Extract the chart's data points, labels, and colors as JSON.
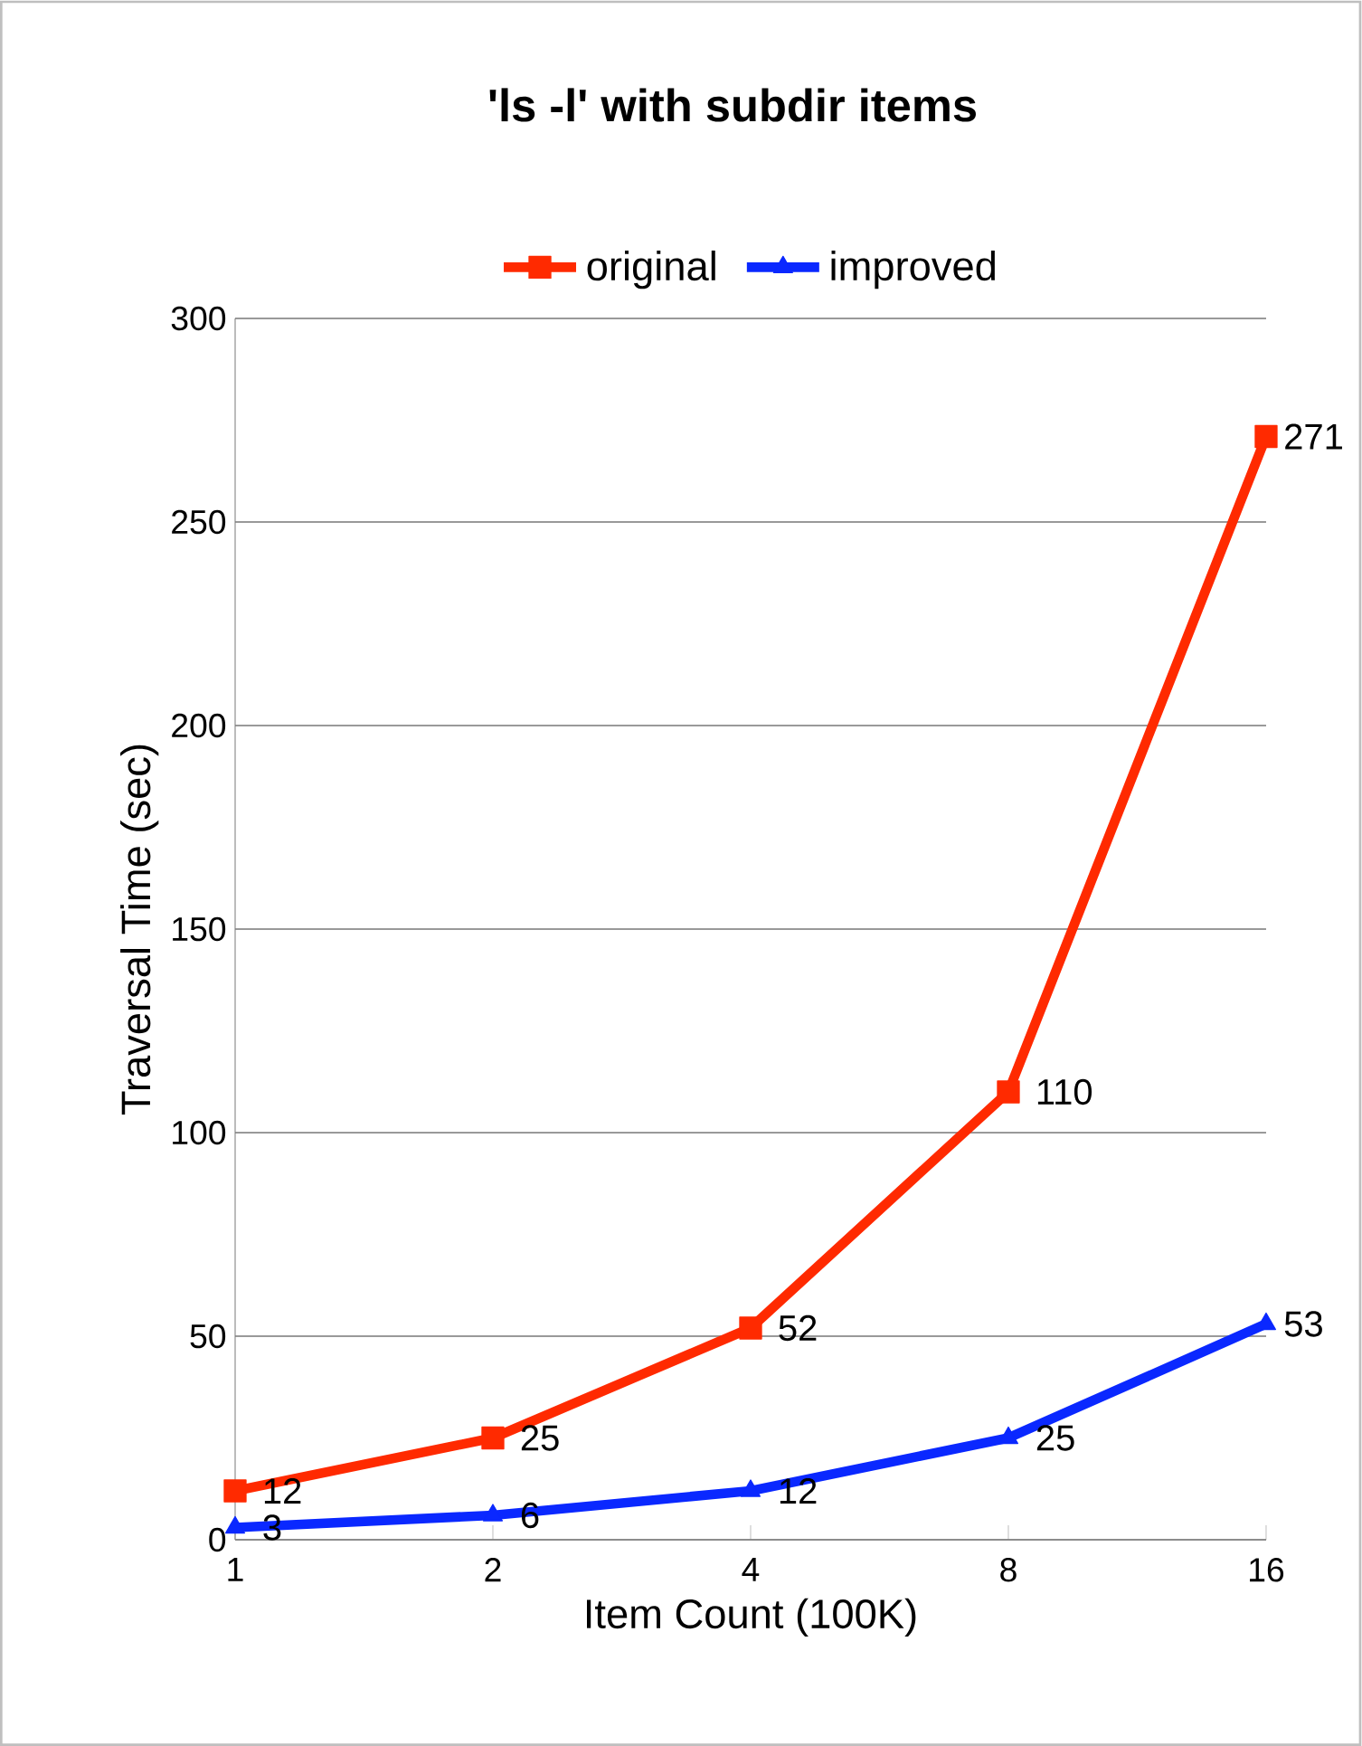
{
  "chart_data": {
    "type": "line",
    "title": "'ls -l' with subdir items",
    "xlabel": "Item Count (100K)",
    "ylabel": "Traversal Time (sec)",
    "categories": [
      "1",
      "2",
      "4",
      "8",
      "16"
    ],
    "series": [
      {
        "name": "original",
        "color": "#ff2a00",
        "marker": "square",
        "values": [
          12,
          25,
          52,
          110,
          271
        ]
      },
      {
        "name": "improved",
        "color": "#0a28ff",
        "marker": "triangle",
        "values": [
          3,
          6,
          12,
          25,
          53
        ]
      }
    ],
    "ylim": [
      0,
      300
    ],
    "yticks": [
      0,
      50,
      100,
      150,
      200,
      250,
      300
    ],
    "grid": "y",
    "legend": "top",
    "data_labels": true
  }
}
